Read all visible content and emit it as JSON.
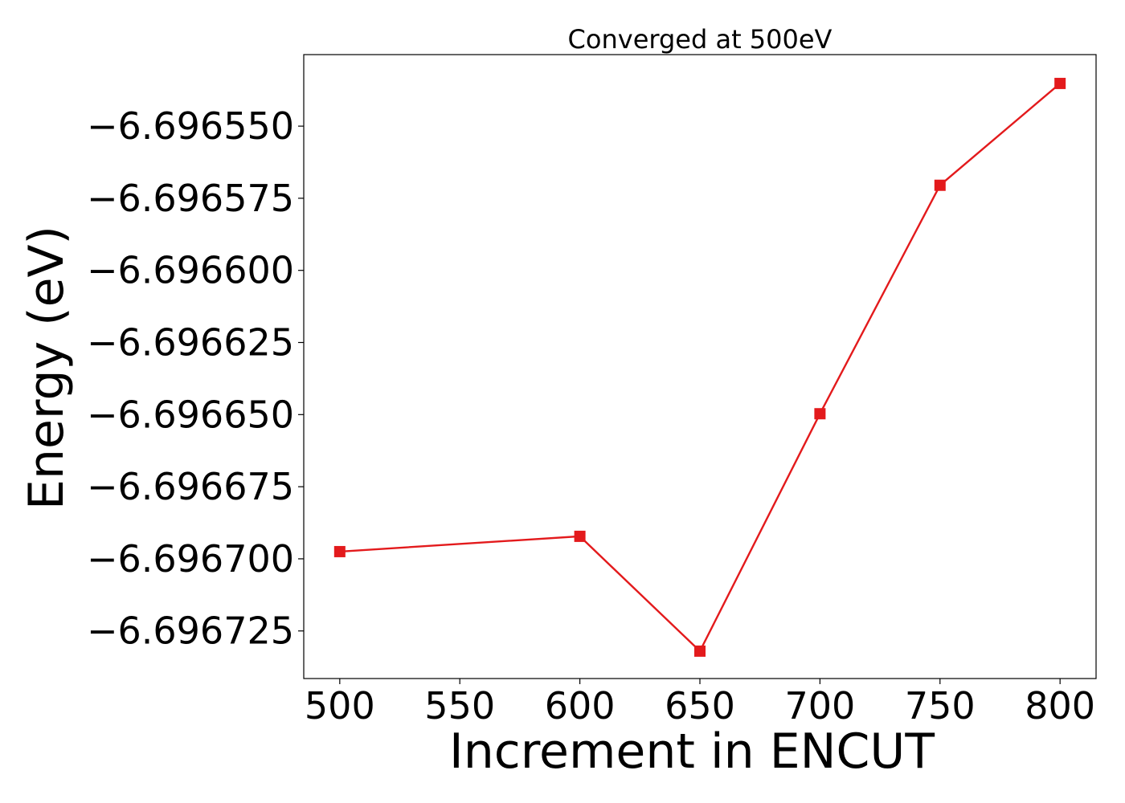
{
  "chart_data": {
    "type": "line",
    "title": "Converged at 500eV",
    "xlabel": "Increment in ENCUT",
    "ylabel": "Energy (eV)",
    "x": [
      500,
      600,
      650,
      700,
      750,
      800
    ],
    "series": [
      {
        "values": [
          -6.6966975,
          -6.6966922,
          -6.696732,
          -6.6966497,
          -6.6965705,
          -6.6965352
        ]
      }
    ],
    "xticks": [
      500,
      550,
      600,
      650,
      700,
      750,
      800
    ],
    "xtick_labels": [
      "500",
      "550",
      "600",
      "650",
      "700",
      "750",
      "800"
    ],
    "yticks": [
      -6.69655,
      -6.696575,
      -6.6966,
      -6.696625,
      -6.69665,
      -6.696675,
      -6.6967,
      -6.696725
    ],
    "ytick_labels": [
      "−6.696550",
      "−6.696575",
      "−6.696600",
      "−6.696625",
      "−6.696650",
      "−6.696675",
      "−6.696700",
      "−6.696725"
    ],
    "xlim": [
      485,
      815
    ],
    "ylim": [
      -6.6967415,
      -6.6965252
    ],
    "grid": false,
    "legend": "none",
    "marker": "square",
    "line_color": "#e31a1c"
  }
}
